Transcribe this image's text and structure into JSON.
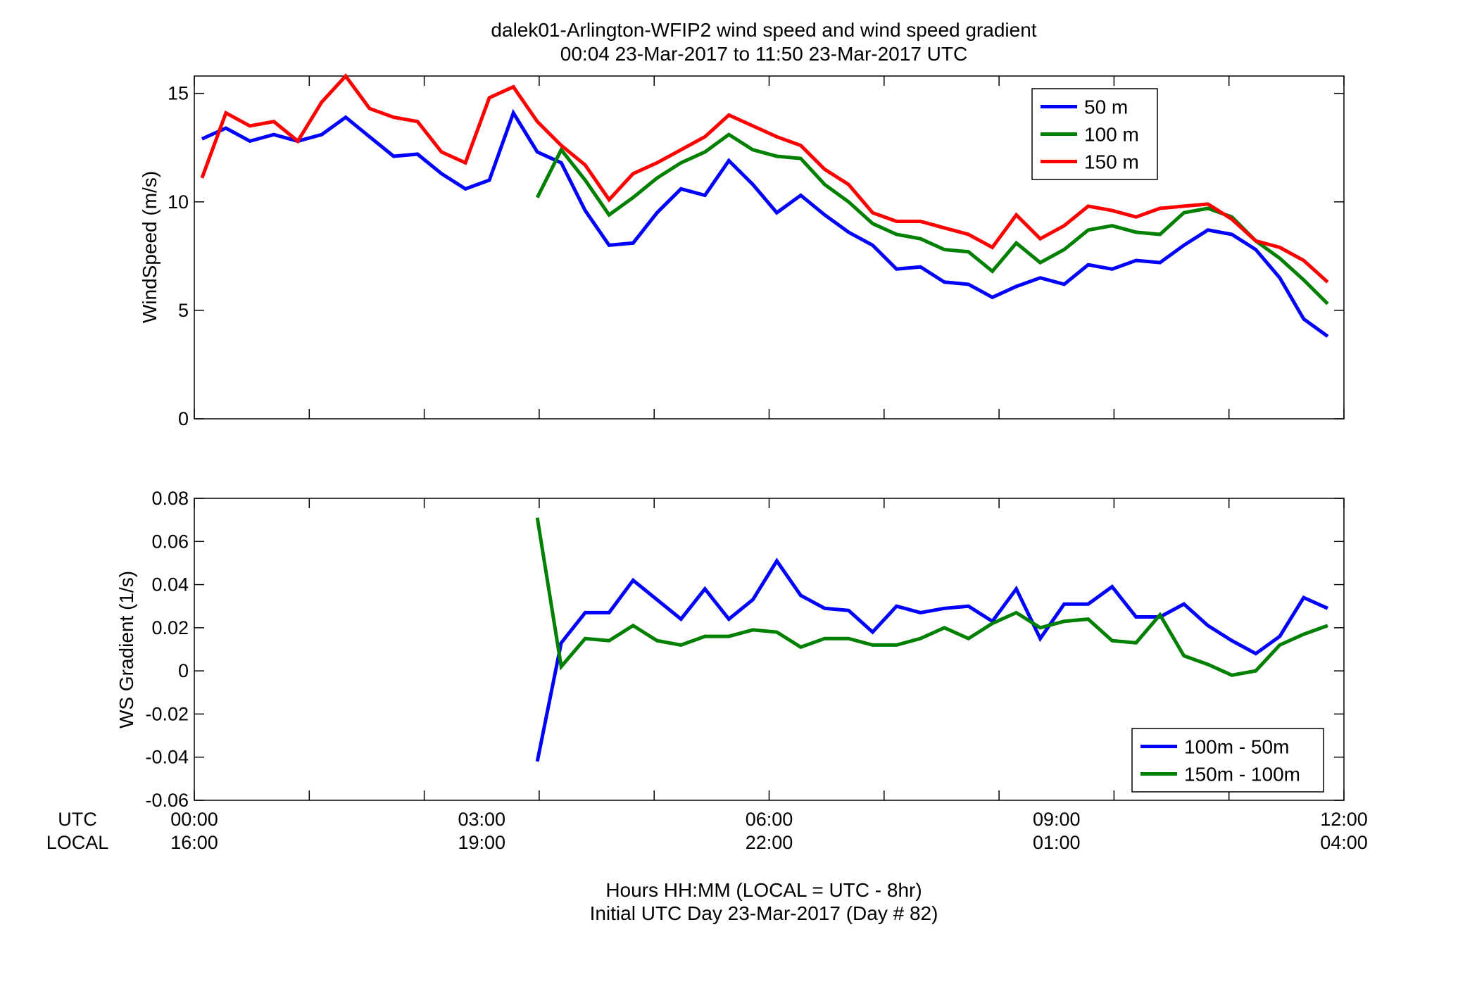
{
  "figure_title": {
    "line1": "dalek01-Arlington-WFIP2  wind speed and wind speed gradient",
    "line2": "00:04 23-Mar-2017 to 11:50 23-Mar-2017  UTC"
  },
  "x_axis": {
    "utc_row_label": "UTC",
    "local_row_label": "LOCAL",
    "utc_ticks": [
      "00:00",
      "03:00",
      "06:00",
      "09:00",
      "12:00"
    ],
    "local_ticks": [
      "16:00",
      "19:00",
      "22:00",
      "01:00",
      "04:00"
    ],
    "tick_hours": [
      0,
      3,
      6,
      9,
      12
    ],
    "minor_tick_hours": [
      0,
      1.2,
      2.4,
      3.6,
      4.8,
      6,
      7.2,
      8.4,
      9.6,
      10.8,
      12
    ],
    "range": [
      0,
      12
    ],
    "xlabel_line1": "Hours HH:MM  (LOCAL = UTC - 8hr)",
    "xlabel_line2": "Initial UTC Day 23-Mar-2017 (Day # 82)"
  },
  "colors": {
    "blue": "#0000ff",
    "green": "#008000",
    "red": "#ff0000"
  },
  "chart_data": [
    {
      "type": "line",
      "ylabel": "WindSpeed (m/s)",
      "ylim": [
        0,
        15.8
      ],
      "yticks": [
        0,
        5,
        10,
        15
      ],
      "ytick_labels": [
        "0",
        "5",
        "10",
        "15"
      ],
      "grid": false,
      "legend_position": "top-right",
      "x": [
        0.08,
        0.33,
        0.58,
        0.83,
        1.08,
        1.33,
        1.58,
        1.83,
        2.08,
        2.33,
        2.58,
        2.83,
        3.08,
        3.33,
        3.58,
        3.83,
        4.08,
        4.33,
        4.58,
        4.83,
        5.08,
        5.33,
        5.58,
        5.83,
        6.08,
        6.33,
        6.58,
        6.83,
        7.08,
        7.33,
        7.58,
        7.83,
        8.08,
        8.33,
        8.58,
        8.83,
        9.08,
        9.33,
        9.58,
        9.83,
        10.08,
        10.33,
        10.58,
        10.83,
        11.08,
        11.33,
        11.58,
        11.83
      ],
      "series": [
        {
          "name": "50 m",
          "color": "#0000ff",
          "values": [
            12.9,
            13.4,
            12.8,
            13.1,
            12.8,
            13.1,
            13.9,
            13.0,
            12.1,
            12.2,
            11.3,
            10.6,
            11.0,
            14.1,
            12.3,
            11.8,
            9.6,
            8.0,
            8.1,
            9.5,
            10.6,
            10.3,
            11.9,
            10.8,
            9.5,
            10.3,
            9.4,
            8.6,
            8.0,
            6.9,
            7.0,
            6.3,
            6.2,
            5.6,
            6.1,
            6.5,
            6.2,
            7.1,
            6.9,
            7.3,
            7.2,
            8.0,
            8.7,
            8.5,
            7.8,
            6.5,
            4.6,
            3.8
          ]
        },
        {
          "name": "100 m",
          "color": "#008000",
          "values": [
            null,
            null,
            null,
            null,
            null,
            null,
            null,
            null,
            null,
            null,
            null,
            null,
            null,
            null,
            10.2,
            12.4,
            11.0,
            9.4,
            10.2,
            11.1,
            11.8,
            12.3,
            13.1,
            12.4,
            12.1,
            12.0,
            10.8,
            10.0,
            9.0,
            8.5,
            8.3,
            7.8,
            7.7,
            6.8,
            8.1,
            7.2,
            7.8,
            8.7,
            8.9,
            8.6,
            8.5,
            9.5,
            9.7,
            9.3,
            8.2,
            7.4,
            6.4,
            5.3
          ]
        },
        {
          "name": "150 m",
          "color": "#ff0000",
          "values": [
            11.1,
            14.1,
            13.5,
            13.7,
            12.8,
            14.6,
            15.8,
            14.3,
            13.9,
            13.7,
            12.3,
            11.8,
            14.8,
            15.3,
            13.7,
            12.6,
            11.7,
            10.1,
            11.3,
            11.8,
            12.4,
            13.0,
            14.0,
            13.5,
            13.0,
            12.6,
            11.5,
            10.8,
            9.5,
            9.1,
            9.1,
            8.8,
            8.5,
            7.9,
            9.4,
            8.3,
            8.9,
            9.8,
            9.6,
            9.3,
            9.7,
            9.8,
            9.9,
            9.2,
            8.2,
            7.9,
            7.3,
            6.3
          ]
        }
      ]
    },
    {
      "type": "line",
      "ylabel": "WS Gradient (1/s)",
      "ylim": [
        -0.06,
        0.08
      ],
      "yticks": [
        -0.06,
        -0.04,
        -0.02,
        0,
        0.02,
        0.04,
        0.06,
        0.08
      ],
      "ytick_labels": [
        "-0.06",
        "-0.04",
        "-0.02",
        "0",
        "0.02",
        "0.04",
        "0.06",
        "0.08"
      ],
      "grid": false,
      "legend_position": "bottom-right",
      "x": [
        3.58,
        3.83,
        4.08,
        4.33,
        4.58,
        4.83,
        5.08,
        5.33,
        5.58,
        5.83,
        6.08,
        6.33,
        6.58,
        6.83,
        7.08,
        7.33,
        7.58,
        7.83,
        8.08,
        8.33,
        8.58,
        8.83,
        9.08,
        9.33,
        9.58,
        9.83,
        10.08,
        10.33,
        10.58,
        10.83,
        11.08,
        11.33,
        11.58,
        11.83
      ],
      "series": [
        {
          "name": "100m - 50m",
          "color": "#0000ff",
          "values": [
            -0.042,
            0.013,
            0.027,
            0.027,
            0.042,
            0.033,
            0.024,
            0.038,
            0.024,
            0.033,
            0.051,
            0.035,
            0.029,
            0.028,
            0.018,
            0.03,
            0.027,
            0.029,
            0.03,
            0.023,
            0.038,
            0.015,
            0.031,
            0.031,
            0.039,
            0.025,
            0.025,
            0.031,
            0.021,
            0.014,
            0.008,
            0.016,
            0.034,
            0.029
          ]
        },
        {
          "name": "150m - 100m",
          "color": "#008000",
          "values": [
            0.071,
            0.002,
            0.015,
            0.014,
            0.021,
            0.014,
            0.012,
            0.016,
            0.016,
            0.019,
            0.018,
            0.011,
            0.015,
            0.015,
            0.012,
            0.012,
            0.015,
            0.02,
            0.015,
            0.022,
            0.027,
            0.02,
            0.023,
            0.024,
            0.014,
            0.013,
            0.026,
            0.007,
            0.003,
            -0.002,
            0.0,
            0.012,
            0.017,
            0.021
          ]
        }
      ]
    }
  ]
}
